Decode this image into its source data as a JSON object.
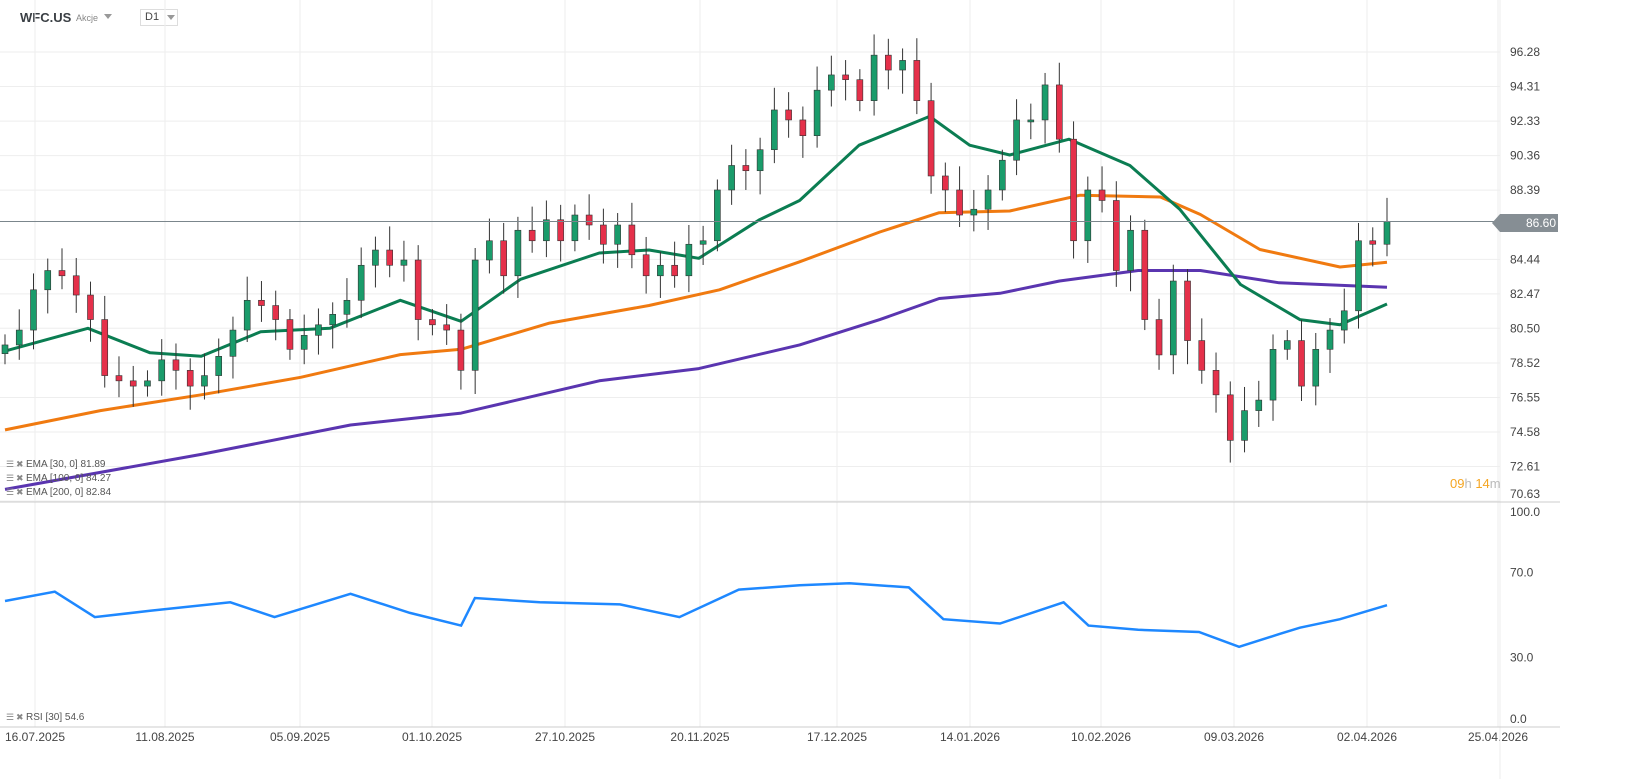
{
  "header": {
    "symbol": "WFC.US",
    "type": "Akcje",
    "timeframe": "D1"
  },
  "last_price": "86.60",
  "countdown": {
    "h": "09",
    "h_unit": "h",
    "m": "14",
    "m_unit": "m"
  },
  "legend": [
    "EMA [30, 0] 81.89",
    "EMA [100, 0] 84.27",
    "EMA [200, 0] 82.84"
  ],
  "rsi_legend": "RSI [30] 54.6",
  "colors": {
    "up": "#1a9c6b",
    "down": "#e5304a",
    "ema30": "#0b7d52",
    "ema100": "#f07a10",
    "ema200": "#5a35b0",
    "rsi": "#1e88ff",
    "grid": "#eeeeee"
  },
  "chart_data": [
    {
      "type": "candlestick",
      "title": "WFC.US D1",
      "ylim": [
        70.63,
        97.5
      ],
      "yticks": [
        "96.28",
        "94.31",
        "92.33",
        "90.36",
        "88.39",
        "86.60",
        "84.44",
        "82.47",
        "80.50",
        "78.52",
        "76.55",
        "74.58",
        "72.61",
        "70.63"
      ],
      "xticks": [
        "16.07.2025",
        "11.08.2025",
        "05.09.2025",
        "01.10.2025",
        "27.10.2025",
        "20.11.2025",
        "17.12.2025",
        "14.01.2026",
        "10.02.2026",
        "09.03.2026",
        "02.04.2026",
        "25.04.2026"
      ],
      "closes": [
        79.55,
        80.4,
        82.7,
        83.8,
        83.5,
        82.4,
        81,
        77.8,
        77.5,
        77.2,
        77.5,
        78.7,
        78.1,
        77.2,
        77.8,
        78.9,
        80.4,
        82.1,
        81.8,
        81,
        79.3,
        80.1,
        80.7,
        81.3,
        82.1,
        84.1,
        84.97,
        84.1,
        84.4,
        81,
        80.7,
        80.4,
        78.1,
        84.4,
        85.5,
        83.5,
        86.1,
        85.5,
        86.7,
        85.5,
        86.97,
        86.4,
        85.3,
        86.4,
        84.7,
        83.5,
        84.1,
        83.5,
        85.3,
        85.5,
        88.4,
        89.8,
        89.5,
        90.7,
        92.97,
        92.4,
        91.5,
        94.1,
        94.97,
        94.7,
        93.5,
        96.1,
        95.25,
        95.8,
        93.5,
        89.2,
        88.4,
        86.97,
        87.3,
        88.4,
        90.1,
        92.4,
        92.4,
        94.4,
        91.3,
        85.5,
        88.4,
        87.8,
        83.8,
        86.1,
        81,
        78.98,
        83.2,
        79.8,
        78.1,
        76.7,
        74.1,
        75.8,
        76.4,
        79.3,
        79.8,
        77.2,
        79.3,
        80.4,
        81.5,
        85.5,
        85.3,
        86.6
      ],
      "series": [
        {
          "name": "EMA [30, 0]",
          "last": 81.89,
          "points": [
            [
              0,
              79.2
            ],
            [
              0.06,
              80.5
            ],
            [
              0.105,
              79.1
            ],
            [
              0.142,
              78.9
            ],
            [
              0.185,
              80.3
            ],
            [
              0.235,
              80.5
            ],
            [
              0.286,
              82.1
            ],
            [
              0.33,
              80.9
            ],
            [
              0.373,
              83.3
            ],
            [
              0.43,
              84.8
            ],
            [
              0.466,
              84.97
            ],
            [
              0.502,
              84.5
            ],
            [
              0.546,
              86.7
            ],
            [
              0.575,
              87.8
            ],
            [
              0.618,
              90.96
            ],
            [
              0.669,
              92.6
            ],
            [
              0.698,
              90.96
            ],
            [
              0.727,
              90.4
            ],
            [
              0.77,
              91.3
            ],
            [
              0.814,
              89.8
            ],
            [
              0.85,
              87.3
            ],
            [
              0.894,
              83
            ],
            [
              0.937,
              81
            ],
            [
              0.966,
              80.7
            ],
            [
              1,
              81.89
            ]
          ]
        },
        {
          "name": "EMA [100, 0]",
          "last": 84.27,
          "points": [
            [
              0,
              74.7
            ],
            [
              0.069,
              75.8
            ],
            [
              0.142,
              76.7
            ],
            [
              0.214,
              77.7
            ],
            [
              0.286,
              79
            ],
            [
              0.33,
              79.3
            ],
            [
              0.394,
              80.8
            ],
            [
              0.466,
              81.8
            ],
            [
              0.517,
              82.7
            ],
            [
              0.575,
              84.3
            ],
            [
              0.633,
              86
            ],
            [
              0.676,
              87.1
            ],
            [
              0.727,
              87.2
            ],
            [
              0.778,
              88.1
            ],
            [
              0.836,
              88
            ],
            [
              0.865,
              87
            ],
            [
              0.908,
              85
            ],
            [
              0.966,
              84
            ],
            [
              1,
              84.27
            ]
          ]
        },
        {
          "name": "EMA [200, 0]",
          "last": 82.84,
          "points": [
            [
              0,
              71.3
            ],
            [
              0.142,
              73.3
            ],
            [
              0.25,
              74.98
            ],
            [
              0.33,
              75.66
            ],
            [
              0.43,
              77.5
            ],
            [
              0.502,
              78.2
            ],
            [
              0.575,
              79.55
            ],
            [
              0.633,
              81
            ],
            [
              0.676,
              82.2
            ],
            [
              0.72,
              82.5
            ],
            [
              0.763,
              83.2
            ],
            [
              0.82,
              83.8
            ],
            [
              0.865,
              83.8
            ],
            [
              0.922,
              83.1
            ],
            [
              1,
              82.84
            ]
          ]
        }
      ]
    },
    {
      "type": "line",
      "title": "RSI [30]",
      "ylim": [
        0,
        100
      ],
      "yticks": [
        "100.0",
        "70.0",
        "30.0",
        "0.0"
      ],
      "series": [
        {
          "name": "RSI [30]",
          "last": 54.6,
          "points": [
            [
              0,
              56.6
            ],
            [
              0.036,
              61
            ],
            [
              0.065,
              49
            ],
            [
              0.105,
              52
            ],
            [
              0.163,
              56
            ],
            [
              0.195,
              49
            ],
            [
              0.25,
              60
            ],
            [
              0.293,
              51
            ],
            [
              0.33,
              45
            ],
            [
              0.34,
              58
            ],
            [
              0.387,
              56
            ],
            [
              0.445,
              55
            ],
            [
              0.488,
              49
            ],
            [
              0.531,
              62
            ],
            [
              0.575,
              64
            ],
            [
              0.611,
              65
            ],
            [
              0.654,
              63
            ],
            [
              0.679,
              48
            ],
            [
              0.72,
              46
            ],
            [
              0.766,
              56
            ],
            [
              0.784,
              45
            ],
            [
              0.82,
              43
            ],
            [
              0.864,
              42
            ],
            [
              0.893,
              35
            ],
            [
              0.922,
              41
            ],
            [
              0.937,
              44
            ],
            [
              0.966,
              48
            ],
            [
              1,
              54.6
            ]
          ]
        }
      ]
    }
  ]
}
